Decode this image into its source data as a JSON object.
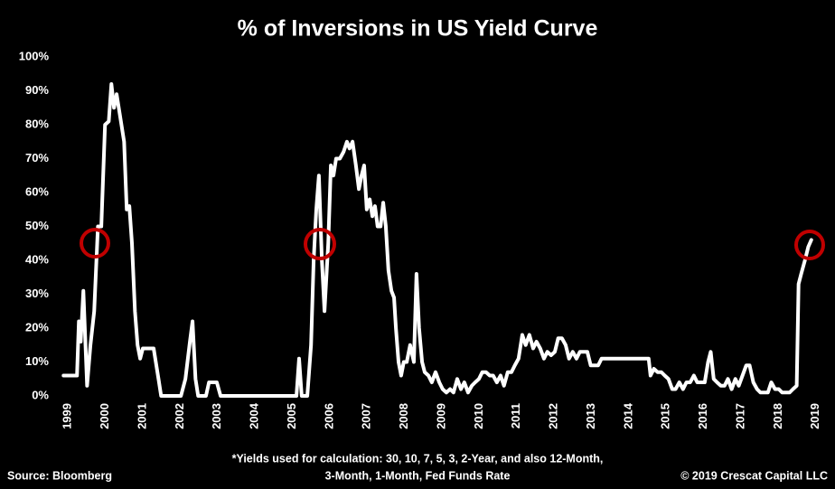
{
  "chart_data": {
    "type": "line",
    "title": "% of Inversions in US Yield Curve",
    "footnote": [
      "*Yields used for calculation:  30, 10, 7, 5, 3, 2-Year, and also 12-Month,",
      "3-Month, 1-Month, Fed Funds Rate"
    ],
    "source": "Source: Bloomberg",
    "copyright": "© 2019 Crescat Capital LLC",
    "color": "#ffffff",
    "xlim": [
      1998.8,
      2019.2
    ],
    "xticks": [
      1999,
      2000,
      2001,
      2002,
      2003,
      2004,
      2005,
      2006,
      2007,
      2008,
      2009,
      2010,
      2011,
      2012,
      2013,
      2014,
      2015,
      2016,
      2017,
      2018,
      2019
    ],
    "ylim": [
      0,
      100
    ],
    "yticks": [
      {
        "value": 0,
        "label": "0%"
      },
      {
        "value": 10,
        "label": "10%"
      },
      {
        "value": 20,
        "label": "20%"
      },
      {
        "value": 30,
        "label": "30%"
      },
      {
        "value": 40,
        "label": "40%"
      },
      {
        "value": 50,
        "label": "50%"
      },
      {
        "value": 60,
        "label": "60%"
      },
      {
        "value": 70,
        "label": "70%"
      },
      {
        "value": 80,
        "label": "80%"
      },
      {
        "value": 90,
        "label": "90%"
      },
      {
        "value": 100,
        "label": "100%"
      }
    ],
    "x": [
      1998.88,
      1999.24,
      1999.29,
      1999.34,
      1999.41,
      1999.51,
      1999.6,
      1999.7,
      1999.8,
      1999.89,
      1999.99,
      2000.09,
      2000.16,
      2000.23,
      2000.3,
      2000.4,
      2000.5,
      2000.57,
      2000.64,
      2000.71,
      2000.79,
      2000.86,
      2000.93,
      2001.0,
      2001.13,
      2001.29,
      2001.42,
      2001.49,
      2002.02,
      2002.14,
      2002.26,
      2002.33,
      2002.41,
      2002.48,
      2002.69,
      2002.77,
      2002.98,
      2003.08,
      2005.11,
      2005.18,
      2005.25,
      2005.4,
      2005.5,
      2005.57,
      2005.64,
      2005.71,
      2005.79,
      2005.86,
      2005.96,
      2006.03,
      2006.1,
      2006.17,
      2006.27,
      2006.37,
      2006.46,
      2006.53,
      2006.61,
      2006.7,
      2006.78,
      2006.85,
      2006.92,
      2006.99,
      2007.07,
      2007.14,
      2007.21,
      2007.28,
      2007.36,
      2007.43,
      2007.5,
      2007.57,
      2007.65,
      2007.72,
      2007.77,
      2007.84,
      2007.91,
      2007.98,
      2008.06,
      2008.15,
      2008.25,
      2008.32,
      2008.39,
      2008.47,
      2008.54,
      2008.64,
      2008.73,
      2008.83,
      2008.93,
      2009.02,
      2009.12,
      2009.22,
      2009.31,
      2009.41,
      2009.51,
      2009.6,
      2009.7,
      2009.8,
      2009.89,
      2009.99,
      2010.08,
      2010.18,
      2010.28,
      2010.37,
      2010.47,
      2010.57,
      2010.66,
      2010.76,
      2010.86,
      2010.95,
      2011.05,
      2011.15,
      2011.24,
      2011.34,
      2011.44,
      2011.53,
      2011.63,
      2011.73,
      2011.82,
      2011.92,
      2012.02,
      2012.11,
      2012.21,
      2012.31,
      2012.4,
      2012.5,
      2012.6,
      2012.69,
      2012.79,
      2012.89,
      2012.98,
      2013.08,
      2013.18,
      2013.27,
      2013.37,
      2013.61,
      2014.09,
      2014.53,
      2014.58,
      2014.67,
      2014.77,
      2014.87,
      2014.96,
      2015.06,
      2015.16,
      2015.25,
      2015.35,
      2015.45,
      2015.54,
      2015.64,
      2015.74,
      2015.83,
      2015.93,
      2016.03,
      2016.12,
      2016.19,
      2016.27,
      2016.36,
      2016.46,
      2016.56,
      2016.65,
      2016.75,
      2016.85,
      2016.94,
      2017.04,
      2017.14,
      2017.23,
      2017.33,
      2017.43,
      2017.52,
      2017.62,
      2017.72,
      2017.81,
      2017.91,
      2018.01,
      2018.1,
      2018.2,
      2018.3,
      2018.39,
      2018.49,
      2018.54,
      2018.61,
      2018.71,
      2018.8,
      2018.88
    ],
    "values": [
      6,
      6,
      22,
      16,
      31,
      3,
      15,
      25,
      50,
      50,
      80,
      81,
      92,
      85,
      89,
      82,
      75,
      55,
      56,
      45,
      25,
      15,
      11,
      14,
      14,
      14,
      5,
      0,
      0,
      5,
      16,
      22,
      5,
      0,
      0,
      4,
      4,
      0,
      0,
      11,
      0,
      0,
      15,
      40,
      55,
      65,
      40,
      25,
      45,
      68,
      65,
      70,
      70,
      72,
      75,
      73,
      75,
      68,
      61,
      65,
      68,
      55,
      58,
      53,
      56,
      50,
      50,
      57,
      50,
      37,
      31,
      29,
      20,
      10,
      6,
      10,
      10,
      15,
      10,
      36,
      20,
      10,
      7,
      6,
      4,
      7,
      4,
      2,
      1,
      2,
      1,
      5,
      2,
      4,
      1,
      3,
      4,
      5,
      7,
      7,
      6,
      6,
      4,
      6,
      3,
      7,
      7,
      9,
      11,
      18,
      15,
      18,
      14,
      16,
      14,
      11,
      13,
      12,
      13,
      17,
      17,
      15,
      11,
      13,
      11,
      13,
      13,
      13,
      9,
      9,
      9,
      11,
      11,
      11,
      11,
      11,
      6,
      8,
      7,
      7,
      6,
      5,
      2,
      2,
      4,
      2,
      4,
      4,
      6,
      4,
      4,
      4,
      10,
      13,
      5,
      4,
      3,
      3,
      5,
      2,
      5,
      3,
      6,
      9,
      9,
      4,
      2,
      1,
      1,
      1,
      4,
      2,
      2,
      1,
      1,
      1,
      2,
      3,
      33,
      36,
      40,
      44,
      46
    ]
  }
}
